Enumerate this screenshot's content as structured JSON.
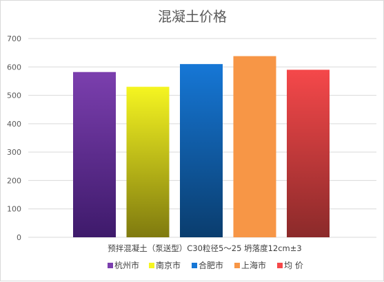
{
  "chart_data": {
    "type": "bar",
    "title": "混凝土价格",
    "categories": [
      "预拌混凝土（泵送型）C30粒径5～25 坍落度12cm±3"
    ],
    "series": [
      {
        "name": "杭州市",
        "values": [
          582
        ],
        "color": "#7b3fae",
        "color_end": "#3e1a6b"
      },
      {
        "name": "南京市",
        "values": [
          530
        ],
        "color": "#f5f521",
        "color_end": "#7f7a0f"
      },
      {
        "name": "合肥市",
        "values": [
          610
        ],
        "color": "#1677d6",
        "color_end": "#0a3d6e"
      },
      {
        "name": "上海市",
        "values": [
          638
        ],
        "color": "#f79646",
        "color_end": "#f79646"
      },
      {
        "name": "均  价",
        "values": [
          590
        ],
        "color": "#f5484a",
        "color_end": "#8b2a2a"
      }
    ],
    "y_ticks": [
      "0",
      "100",
      "200",
      "300",
      "400",
      "500",
      "600",
      "700"
    ],
    "ylim": [
      0,
      700
    ],
    "grid": true,
    "legend_position": "bottom"
  }
}
